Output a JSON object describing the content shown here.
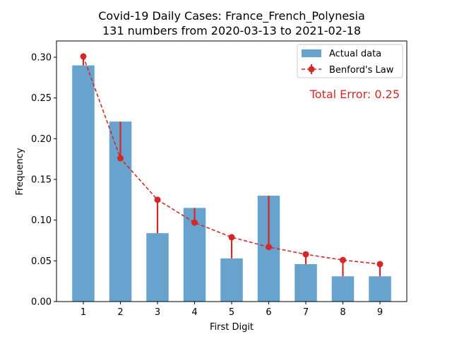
{
  "chart_data": {
    "type": "bar",
    "title": "Covid-19 Daily Cases: France_French_Polynesia",
    "subtitle": "131 numbers from 2020-03-13 to 2021-02-18",
    "xlabel": "First Digit",
    "ylabel": "Frequency",
    "categories": [
      "1",
      "2",
      "3",
      "4",
      "5",
      "6",
      "7",
      "8",
      "9"
    ],
    "ylim": [
      0,
      0.32
    ],
    "yticks": [
      "0.00",
      "0.05",
      "0.10",
      "0.15",
      "0.20",
      "0.25",
      "0.30"
    ],
    "series": [
      {
        "name": "Actual data",
        "type": "bar",
        "color": "#1f77b4",
        "values": [
          0.29,
          0.221,
          0.084,
          0.115,
          0.053,
          0.13,
          0.046,
          0.031,
          0.031
        ]
      },
      {
        "name": "Benford's Law",
        "type": "line",
        "color": "#d62728",
        "values": [
          0.301,
          0.176,
          0.125,
          0.097,
          0.079,
          0.067,
          0.058,
          0.051,
          0.046
        ]
      }
    ],
    "annotation": "Total Error: 0.25",
    "legend_position": "top-right",
    "grid": false
  }
}
